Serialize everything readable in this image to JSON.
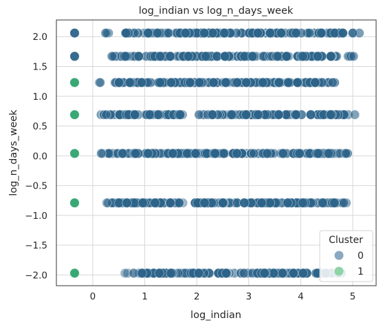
{
  "chart_data": {
    "type": "scatter",
    "title": "log_indian vs log_n_days_week",
    "xlabel": "log_indian",
    "ylabel": "log_n_days_week",
    "xlim": [
      -0.7,
      5.45
    ],
    "ylim": [
      -2.18,
      2.28
    ],
    "xticks": [
      "0",
      "1",
      "2",
      "3",
      "4",
      "5"
    ],
    "yticks": [
      "2.0",
      "1.5",
      "1.0",
      "0.5",
      "0.0",
      "−0.5",
      "−1.0",
      "−1.5",
      "−2.0"
    ],
    "grid": true,
    "legend": {
      "title": "Cluster",
      "placement": "lower-right",
      "entries": [
        "0",
        "1"
      ]
    },
    "colors": {
      "cluster0": "#2c6389",
      "cluster0_light": "#8aa8bf",
      "cluster1": "#2fa36e"
    },
    "series": [
      {
        "name": "1",
        "x": [
          -0.35,
          -0.35,
          -0.35,
          -0.35,
          -0.35,
          -0.35,
          -0.35
        ],
        "y": [
          2.06,
          1.23,
          0.69,
          0.04,
          -0.79,
          -1.97,
          1.67
        ]
      },
      {
        "name": "0",
        "rows": [
          {
            "y": 2.06,
            "x_range": [
              0.2,
              5.15
            ]
          },
          {
            "y": 1.67,
            "x_range": [
              0.3,
              5.05
            ]
          },
          {
            "y": 1.23,
            "x_range": [
              0.1,
              4.7
            ]
          },
          {
            "y": 0.69,
            "x_range": [
              0.15,
              5.15
            ]
          },
          {
            "y": 0.04,
            "x_range": [
              0.15,
              5.05
            ]
          },
          {
            "y": -0.79,
            "x_range": [
              0.2,
              4.95
            ]
          },
          {
            "y": -1.97,
            "x_range": [
              0.6,
              4.8
            ]
          }
        ]
      }
    ]
  }
}
